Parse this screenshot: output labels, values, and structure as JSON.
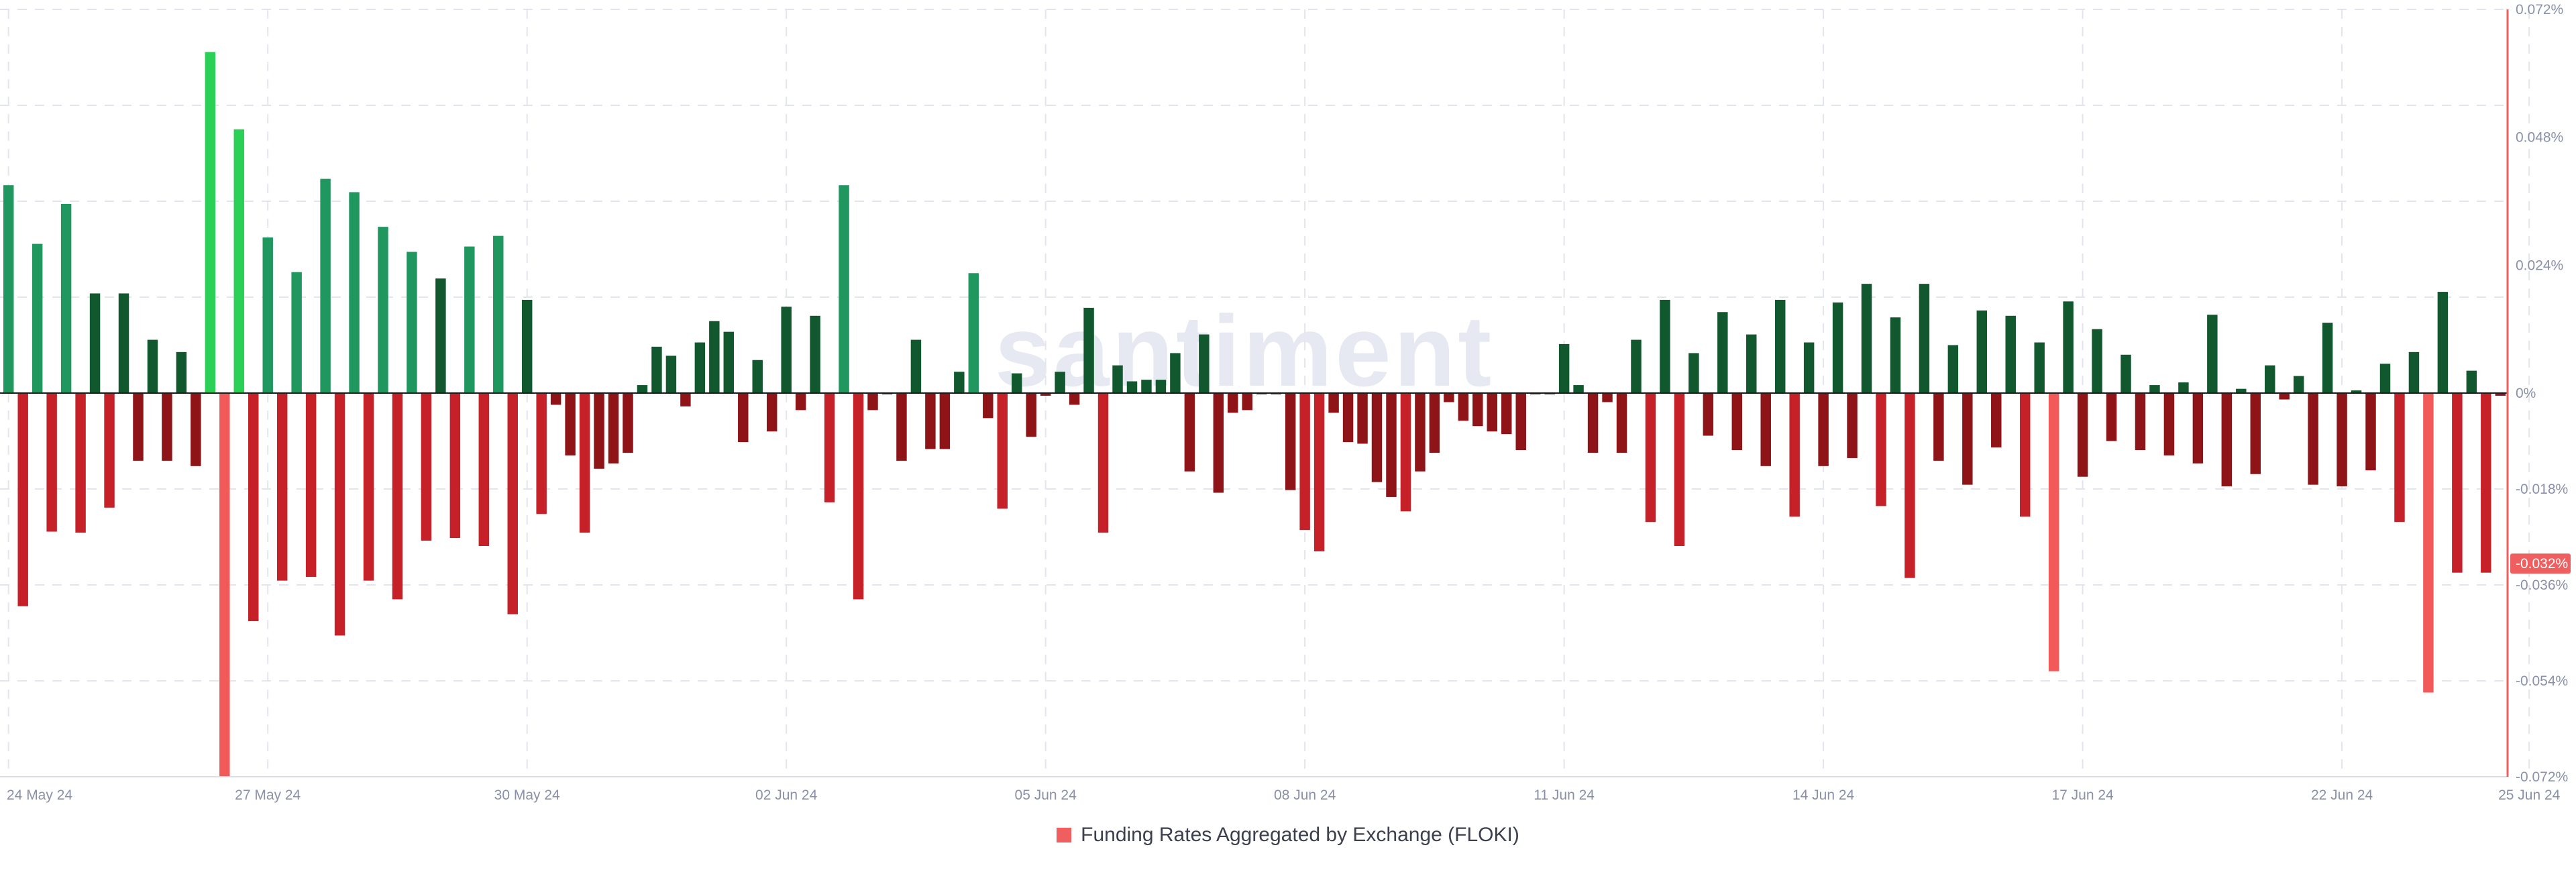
{
  "chart_data": {
    "type": "bar",
    "watermark": "santiment",
    "legend": {
      "label": "Funding Rates Aggregated by Exchange (FLOKI)",
      "color": "#f05f5f",
      "placement": "bottom-center"
    },
    "ylim": [
      -0.072,
      0.072
    ],
    "y_ticks": [
      "0.072%",
      "0.048%",
      "0.024%",
      "0%",
      "-0.018%",
      "-0.036%",
      "-0.054%",
      "-0.072%"
    ],
    "y_tick_values": [
      0.072,
      0.048,
      0.024,
      0,
      -0.018,
      -0.036,
      -0.054,
      -0.072
    ],
    "current_value_label": "-0.032%",
    "current_value": -0.032,
    "x_ticks": [
      "24 May 24",
      "27 May 24",
      "30 May 24",
      "02 Jun 24",
      "05 Jun 24",
      "08 Jun 24",
      "11 Jun 24",
      "14 Jun 24",
      "17 Jun 24",
      "22 Jun 24",
      "25 Jun 24"
    ],
    "x_tick_index": [
      0,
      18,
      36,
      54,
      72,
      90,
      108,
      126,
      144,
      162,
      175
    ],
    "grid": true,
    "colors": {
      "positive_light": "#2bd157",
      "positive_mid": "#219760",
      "positive_dark": "#12582e",
      "negative_light": "#f25a5a",
      "negative_mid": "#c62029",
      "negative_dark": "#8e1418",
      "axis_right": "#f05f5f",
      "grid": "#e3e5ee"
    },
    "values": [
      0.039,
      -0.04,
      0.028,
      -0.026,
      0.0355,
      -0.0262,
      0.0187,
      -0.0215,
      0.0187,
      -0.0127,
      0.01,
      -0.0127,
      0.0077,
      -0.0137,
      0.064,
      -0.072,
      0.0495,
      -0.0428,
      0.0292,
      -0.0352,
      0.0227,
      -0.0345,
      0.0402,
      -0.0455,
      0.0377,
      -0.0352,
      0.0312,
      -0.0387,
      0.0265,
      -0.0277,
      0.0215,
      -0.0272,
      0.0275,
      -0.0287,
      0.0295,
      -0.0415,
      0.0175,
      -0.0227,
      -0.0022,
      -0.0117,
      -0.0262,
      -0.0142,
      -0.0132,
      -0.0112,
      0.0015,
      0.0087,
      0.007,
      -0.0025,
      0.0095,
      0.0135,
      0.0115,
      -0.0092,
      0.0062,
      -0.0072,
      0.0162,
      -0.0032,
      0.0145,
      -0.0205,
      0.039,
      -0.0387,
      -0.0032,
      0.0,
      -0.0127,
      0.01,
      -0.0105,
      -0.0105,
      0.004,
      0.0225,
      -0.0047,
      -0.0217,
      0.0037,
      -0.0082,
      -0.0005,
      0.004,
      -0.0022,
      0.016,
      -0.0262,
      0.0052,
      0.0022,
      0.0025,
      0.0025,
      0.0075,
      -0.0147,
      0.011,
      -0.0187,
      -0.0037,
      -0.0032,
      0.0,
      0.0,
      -0.0182,
      -0.0257,
      -0.0297,
      -0.0037,
      -0.0092,
      -0.0095,
      -0.0167,
      -0.0195,
      -0.0222,
      -0.0147,
      -0.0112,
      -0.0017,
      -0.0052,
      -0.0062,
      -0.0072,
      -0.0077,
      -0.0107,
      0.0,
      0.0,
      0.0092,
      0.0015,
      -0.0112,
      -0.0017,
      -0.0112,
      0.01,
      -0.0242,
      0.0175,
      -0.0287,
      0.0075,
      -0.008,
      0.0152,
      -0.0107,
      0.011,
      -0.0137,
      0.0175,
      -0.0232,
      0.0095,
      -0.0137,
      0.017,
      -0.0122,
      0.0205,
      -0.0212,
      0.0142,
      -0.0347,
      0.0205,
      -0.0127,
      0.009,
      -0.0172,
      0.0155,
      -0.0102,
      0.0145,
      -0.0232,
      0.0095,
      -0.0522,
      0.0172,
      -0.0157,
      0.012,
      -0.009,
      0.0072,
      -0.0107,
      0.0015,
      -0.0117,
      0.002,
      -0.0132,
      0.0147,
      -0.0175,
      0.0008,
      -0.0152,
      0.0052,
      -0.0012,
      0.0032,
      -0.0172,
      0.0132,
      -0.0175,
      0.0005,
      -0.0145,
      0.0055,
      -0.0242,
      0.0077,
      -0.0562,
      0.019,
      -0.0337,
      0.0042,
      -0.0337,
      -0.0005
    ]
  }
}
